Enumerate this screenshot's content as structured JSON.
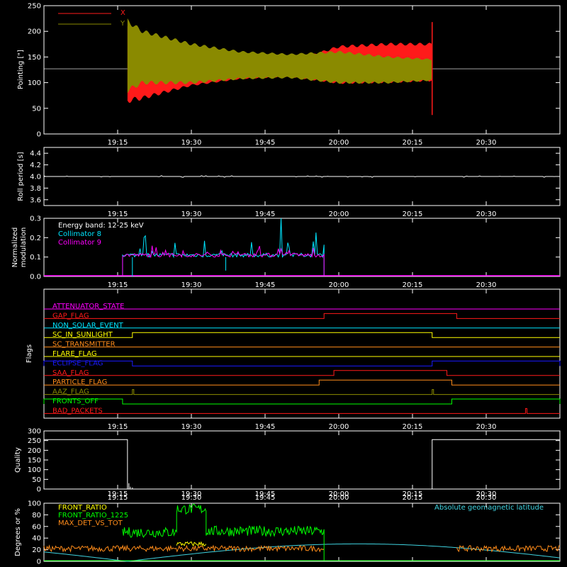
{
  "colors": {
    "background": "#000000",
    "axes": "#ffffff",
    "red": "#ff1a1a",
    "olive": "#8a8a00",
    "white": "#ffffff",
    "cyan": "#00e5ff",
    "magenta": "#ff00ff",
    "green": "#00ff00",
    "yellow": "#ffff00",
    "orange": "#ff8c1a",
    "blue": "#1a1aff",
    "geomag": "#3fd3e0"
  },
  "chart_data": [
    {
      "id": "pointing",
      "type": "line",
      "ylabel": "Pointing [\"]",
      "ylim": [
        0,
        250
      ],
      "yticks": [
        0,
        50,
        100,
        150,
        200,
        250
      ],
      "xlim": [
        "19:00",
        "20:45"
      ],
      "xticks": [
        "19:15",
        "19:30",
        "19:45",
        "20:00",
        "20:15",
        "20:30"
      ],
      "legend": "top-left",
      "series": [
        {
          "name": "X",
          "color": "red",
          "band": {
            "x": [
              "19:17",
              "19:20",
              "19:30",
              "19:40",
              "19:50",
              "20:00",
              "20:10",
              "20:19"
            ],
            "low": [
              65,
              70,
              95,
              108,
              112,
              100,
              102,
              105
            ],
            "high": [
              210,
              175,
              145,
              140,
              140,
              170,
              175,
              175
            ]
          }
        },
        {
          "name": "Y",
          "color": "olive",
          "band": {
            "x": [
              "19:17",
              "19:20",
              "19:30",
              "19:40",
              "19:50",
              "20:00",
              "20:10",
              "20:19"
            ],
            "low": [
              85,
              100,
              100,
              108,
              110,
              100,
              100,
              105
            ],
            "high": [
              220,
              200,
              175,
              160,
              155,
              160,
              150,
              145
            ]
          }
        }
      ],
      "baseline": 127,
      "spikes": [
        {
          "x": "20:19",
          "low": 37,
          "high": 218
        }
      ]
    },
    {
      "id": "roll",
      "type": "line",
      "ylabel": "Roll period [s]",
      "ylim": [
        3.5,
        4.5
      ],
      "yticks": [
        3.6,
        3.8,
        4.0,
        4.2,
        4.4
      ],
      "xlim": [
        "19:00",
        "20:45"
      ],
      "xticks": [
        "19:15",
        "19:30",
        "19:45",
        "20:00",
        "20:15",
        "20:30"
      ],
      "series": [
        {
          "name": "",
          "color": "white",
          "value": 4.0
        }
      ]
    },
    {
      "id": "modulation",
      "type": "line",
      "ylabel": "Normalized modulation",
      "ylim": [
        0,
        0.3
      ],
      "yticks": [
        0.0,
        0.1,
        0.2,
        0.3
      ],
      "xlim": [
        "19:00",
        "20:45"
      ],
      "xticks": [
        "19:15",
        "19:30",
        "19:45",
        "20:00",
        "20:15",
        "20:30"
      ],
      "legend_title": "Energy band: 12-25 keV",
      "series": [
        {
          "name": "Collimator 8",
          "color": "cyan",
          "range": [
            "19:16",
            "19:57"
          ],
          "level": 0.1,
          "peak": 0.3
        },
        {
          "name": "Collimator 9",
          "color": "magenta",
          "range": [
            "19:16",
            "19:57"
          ],
          "level": 0.1,
          "peak": 0.17
        }
      ]
    },
    {
      "id": "flags",
      "type": "line",
      "ylabel": "Flags",
      "xlim": [
        "19:00",
        "20:45"
      ],
      "xticks": [
        "19:15",
        "19:30",
        "19:45",
        "20:00",
        "20:15",
        "20:30"
      ],
      "series": [
        {
          "name": "ATTENUATOR_STATE",
          "color": "magenta",
          "on": []
        },
        {
          "name": "GAP_FLAG",
          "color": "red",
          "on": [
            [
              "19:57",
              "20:24"
            ]
          ]
        },
        {
          "name": "NON_SOLAR_EVENT",
          "color": "cyan",
          "on": []
        },
        {
          "name": "SC_IN_SUNLIGHT",
          "color": "yellow",
          "on": [
            [
              "19:18",
              "20:19"
            ]
          ]
        },
        {
          "name": "SC_TRANSMITTER",
          "color": "orange",
          "on": []
        },
        {
          "name": "FLARE_FLAG",
          "color": "yellow",
          "on": []
        },
        {
          "name": "ECLIPSE_FLAG",
          "color": "blue",
          "on": [
            [
              "19:00",
              "19:18"
            ],
            [
              "20:19",
              "20:45"
            ]
          ]
        },
        {
          "name": "SAA_FLAG",
          "color": "red",
          "on": [
            [
              "19:59",
              "20:22"
            ]
          ]
        },
        {
          "name": "PARTICLE_FLAG",
          "color": "orange",
          "on": [
            [
              "19:56",
              "20:23"
            ]
          ]
        },
        {
          "name": "AAZ_FLAG",
          "color": "olive",
          "on": [
            [
              "19:18",
              "19:18"
            ],
            [
              "20:19",
              "20:19"
            ]
          ]
        },
        {
          "name": "FRONTS_OFF",
          "color": "green",
          "on": [
            [
              "19:00",
              "19:16"
            ],
            [
              "20:23",
              "20:45"
            ]
          ]
        },
        {
          "name": "BAD_PACKETS",
          "color": "red",
          "on": [
            [
              "20:38",
              "20:38"
            ]
          ]
        }
      ]
    },
    {
      "id": "quality",
      "type": "line",
      "ylabel": "Quality",
      "ylim": [
        0,
        300
      ],
      "yticks": [
        0,
        50,
        100,
        150,
        200,
        250,
        300
      ],
      "xlim": [
        "19:00",
        "20:45"
      ],
      "xticks": [
        "19:15",
        "19:30",
        "19:45",
        "20:00",
        "20:15",
        "20:30"
      ],
      "series": [
        {
          "name": "",
          "color": "white",
          "high": 255,
          "low": 0,
          "off": [
            "19:17",
            "20:19"
          ]
        }
      ]
    },
    {
      "id": "ratios",
      "type": "line",
      "ylabel": "Degrees or %",
      "ylim": [
        0,
        100
      ],
      "yticks": [
        0,
        20,
        40,
        60,
        80,
        100
      ],
      "xlim": [
        "19:00",
        "20:45"
      ],
      "xticks": [
        "19:15",
        "19:30",
        "19:45",
        "20:00",
        "20:15",
        "20:30"
      ],
      "annotation": "Absolute geomagnetic latitude",
      "series": [
        {
          "name": "FRONT_RATIO",
          "color": "yellow"
        },
        {
          "name": "FRONT_RATIO_1225",
          "color": "green",
          "segments": [
            {
              "range": [
                "19:16",
                "19:27"
              ],
              "level": 50
            },
            {
              "range": [
                "19:27",
                "19:33"
              ],
              "level": 90
            },
            {
              "range": [
                "19:33",
                "19:57"
              ],
              "level": 52
            }
          ]
        },
        {
          "name": "MAX_DET_VS_TOT",
          "color": "orange",
          "level": 22
        },
        {
          "name": "Absolute geomagnetic latitude",
          "color": "geomag",
          "min": 0,
          "max": 30
        }
      ]
    }
  ]
}
